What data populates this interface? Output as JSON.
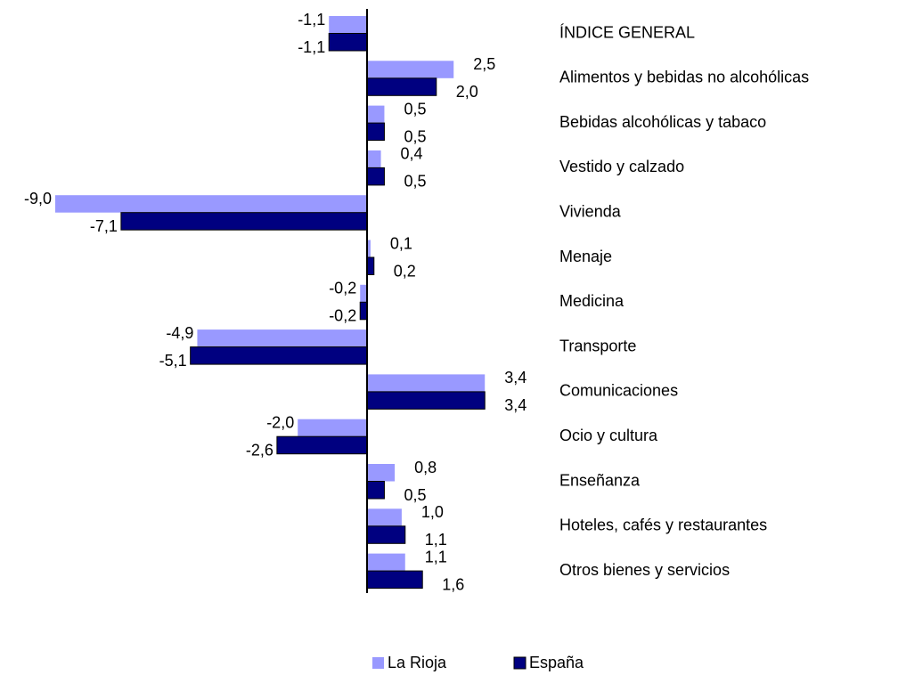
{
  "chart_data": {
    "type": "hbar",
    "categories": [
      "ÍNDICE GENERAL",
      "Alimentos y bebidas no alcohólicas",
      "Bebidas alcohólicas y tabaco",
      "Vestido y calzado",
      "Vivienda",
      "Menaje",
      "Medicina",
      "Transporte",
      "Comunicaciones",
      "Ocio y cultura",
      "Enseñanza",
      "Hoteles, cafés y restaurantes",
      "Otros bienes y servicios"
    ],
    "series": [
      {
        "name": "La Rioja",
        "color": "#9999ff",
        "values": [
          -1.1,
          2.5,
          0.5,
          0.4,
          -9.0,
          0.1,
          -0.2,
          -4.9,
          3.4,
          -2.0,
          0.8,
          1.0,
          1.1
        ],
        "value_labels": [
          "-1,1",
          "2,5",
          "0,5",
          "0,4",
          "-9,0",
          "0,1",
          "-0,2",
          "-4,9",
          "3,4",
          "-2,0",
          "0,8",
          "1,0",
          "1,1"
        ]
      },
      {
        "name": "España",
        "color": "#000080",
        "values": [
          -1.1,
          2.0,
          0.5,
          0.5,
          -7.1,
          0.2,
          -0.2,
          -5.1,
          3.4,
          -2.6,
          0.5,
          1.1,
          1.6
        ],
        "value_labels": [
          "-1,1",
          "2,0",
          "0,5",
          "0,5",
          "-7,1",
          "0,2",
          "-0,2",
          "-5,1",
          "3,4",
          "-2,6",
          "0,5",
          "1,1",
          "1,6"
        ]
      }
    ],
    "legend": "bottom"
  }
}
